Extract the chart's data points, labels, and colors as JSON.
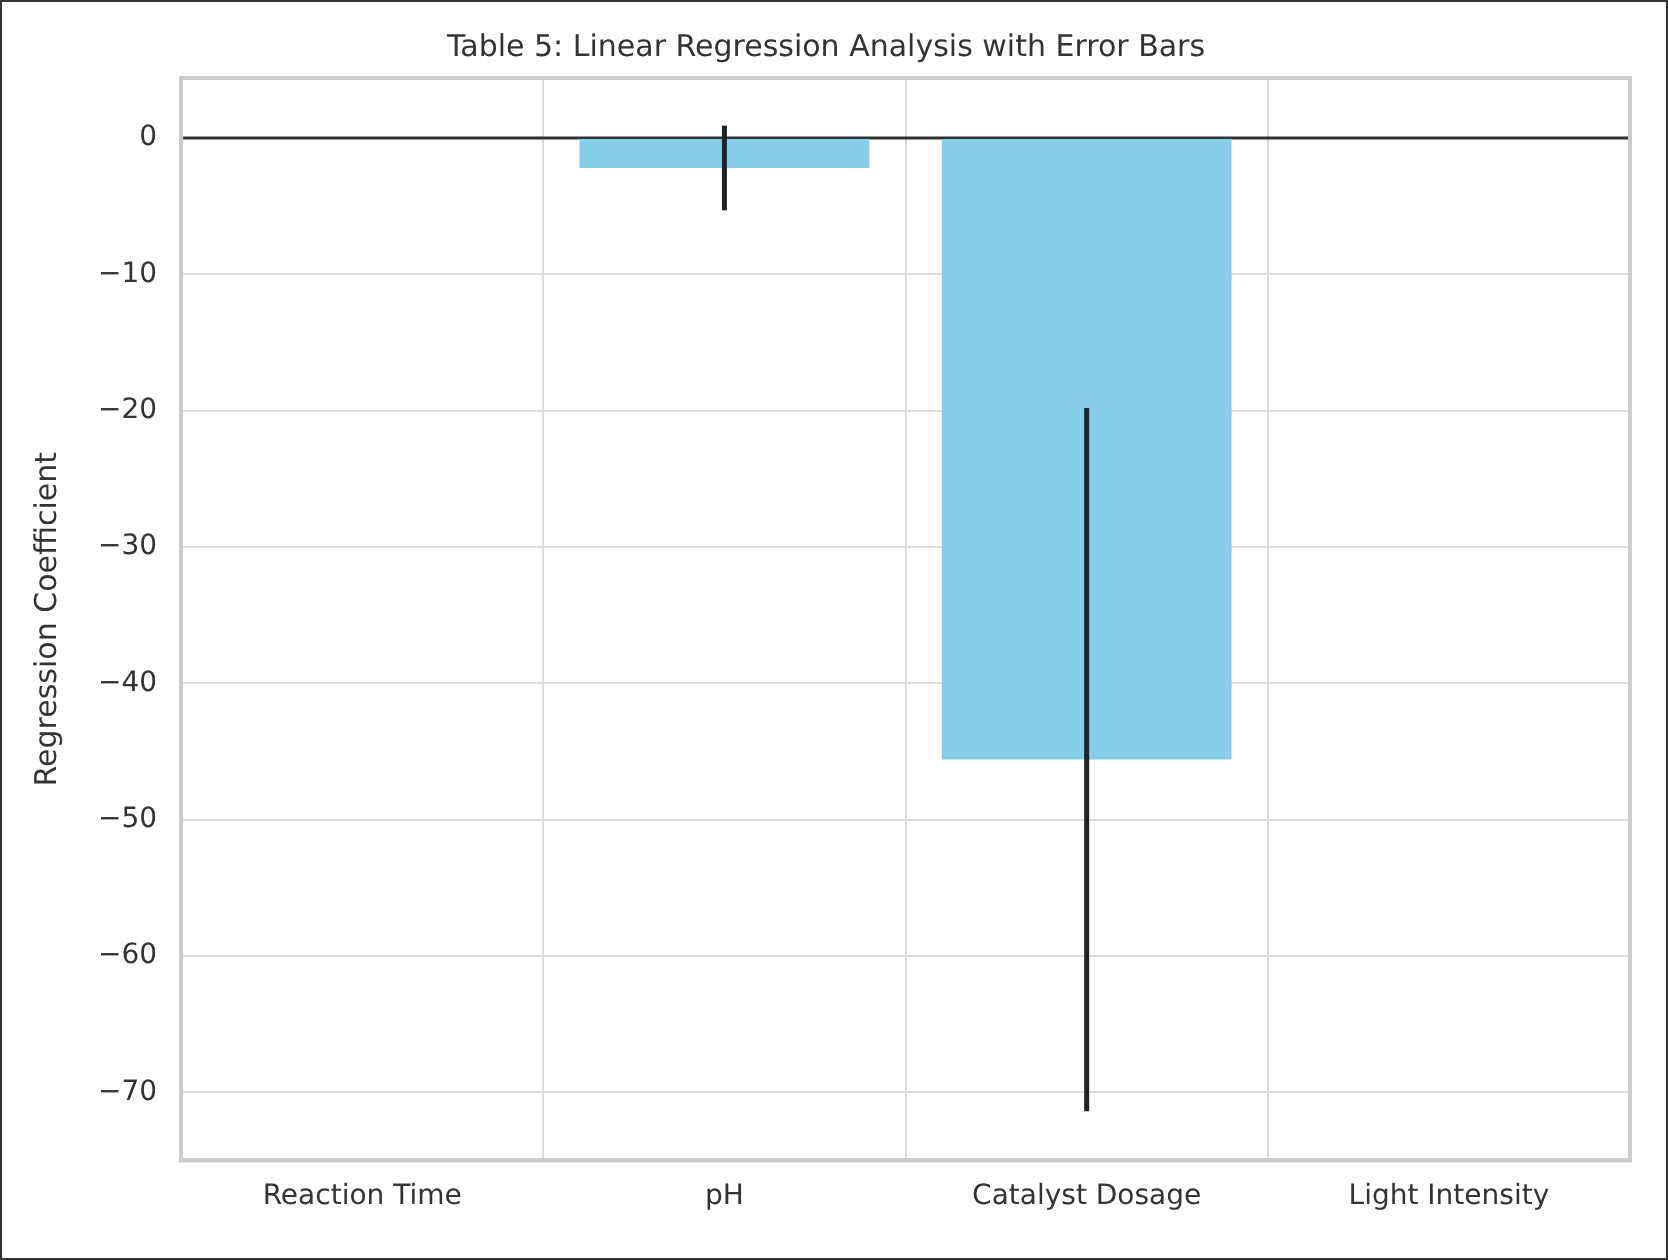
{
  "chart_data": {
    "type": "bar",
    "title": "Table 5: Linear Regression Analysis with Error Bars",
    "ylabel": "Regression Coefficient",
    "categories": [
      "Reaction Time",
      "pH",
      "Catalyst Dosage",
      "Light Intensity"
    ],
    "values": [
      0,
      -2.2,
      -45.6,
      0
    ],
    "errors": [
      null,
      3.1,
      25.8,
      null
    ],
    "color": "#87ceeb",
    "ylim": [
      -75,
      4.4
    ],
    "yticks": [
      0,
      -10,
      -20,
      -30,
      -40,
      -50,
      -60,
      -70
    ],
    "grid": true,
    "ref_lines": [
      {
        "axis": "y",
        "value": 0,
        "color": "#333333"
      }
    ]
  }
}
